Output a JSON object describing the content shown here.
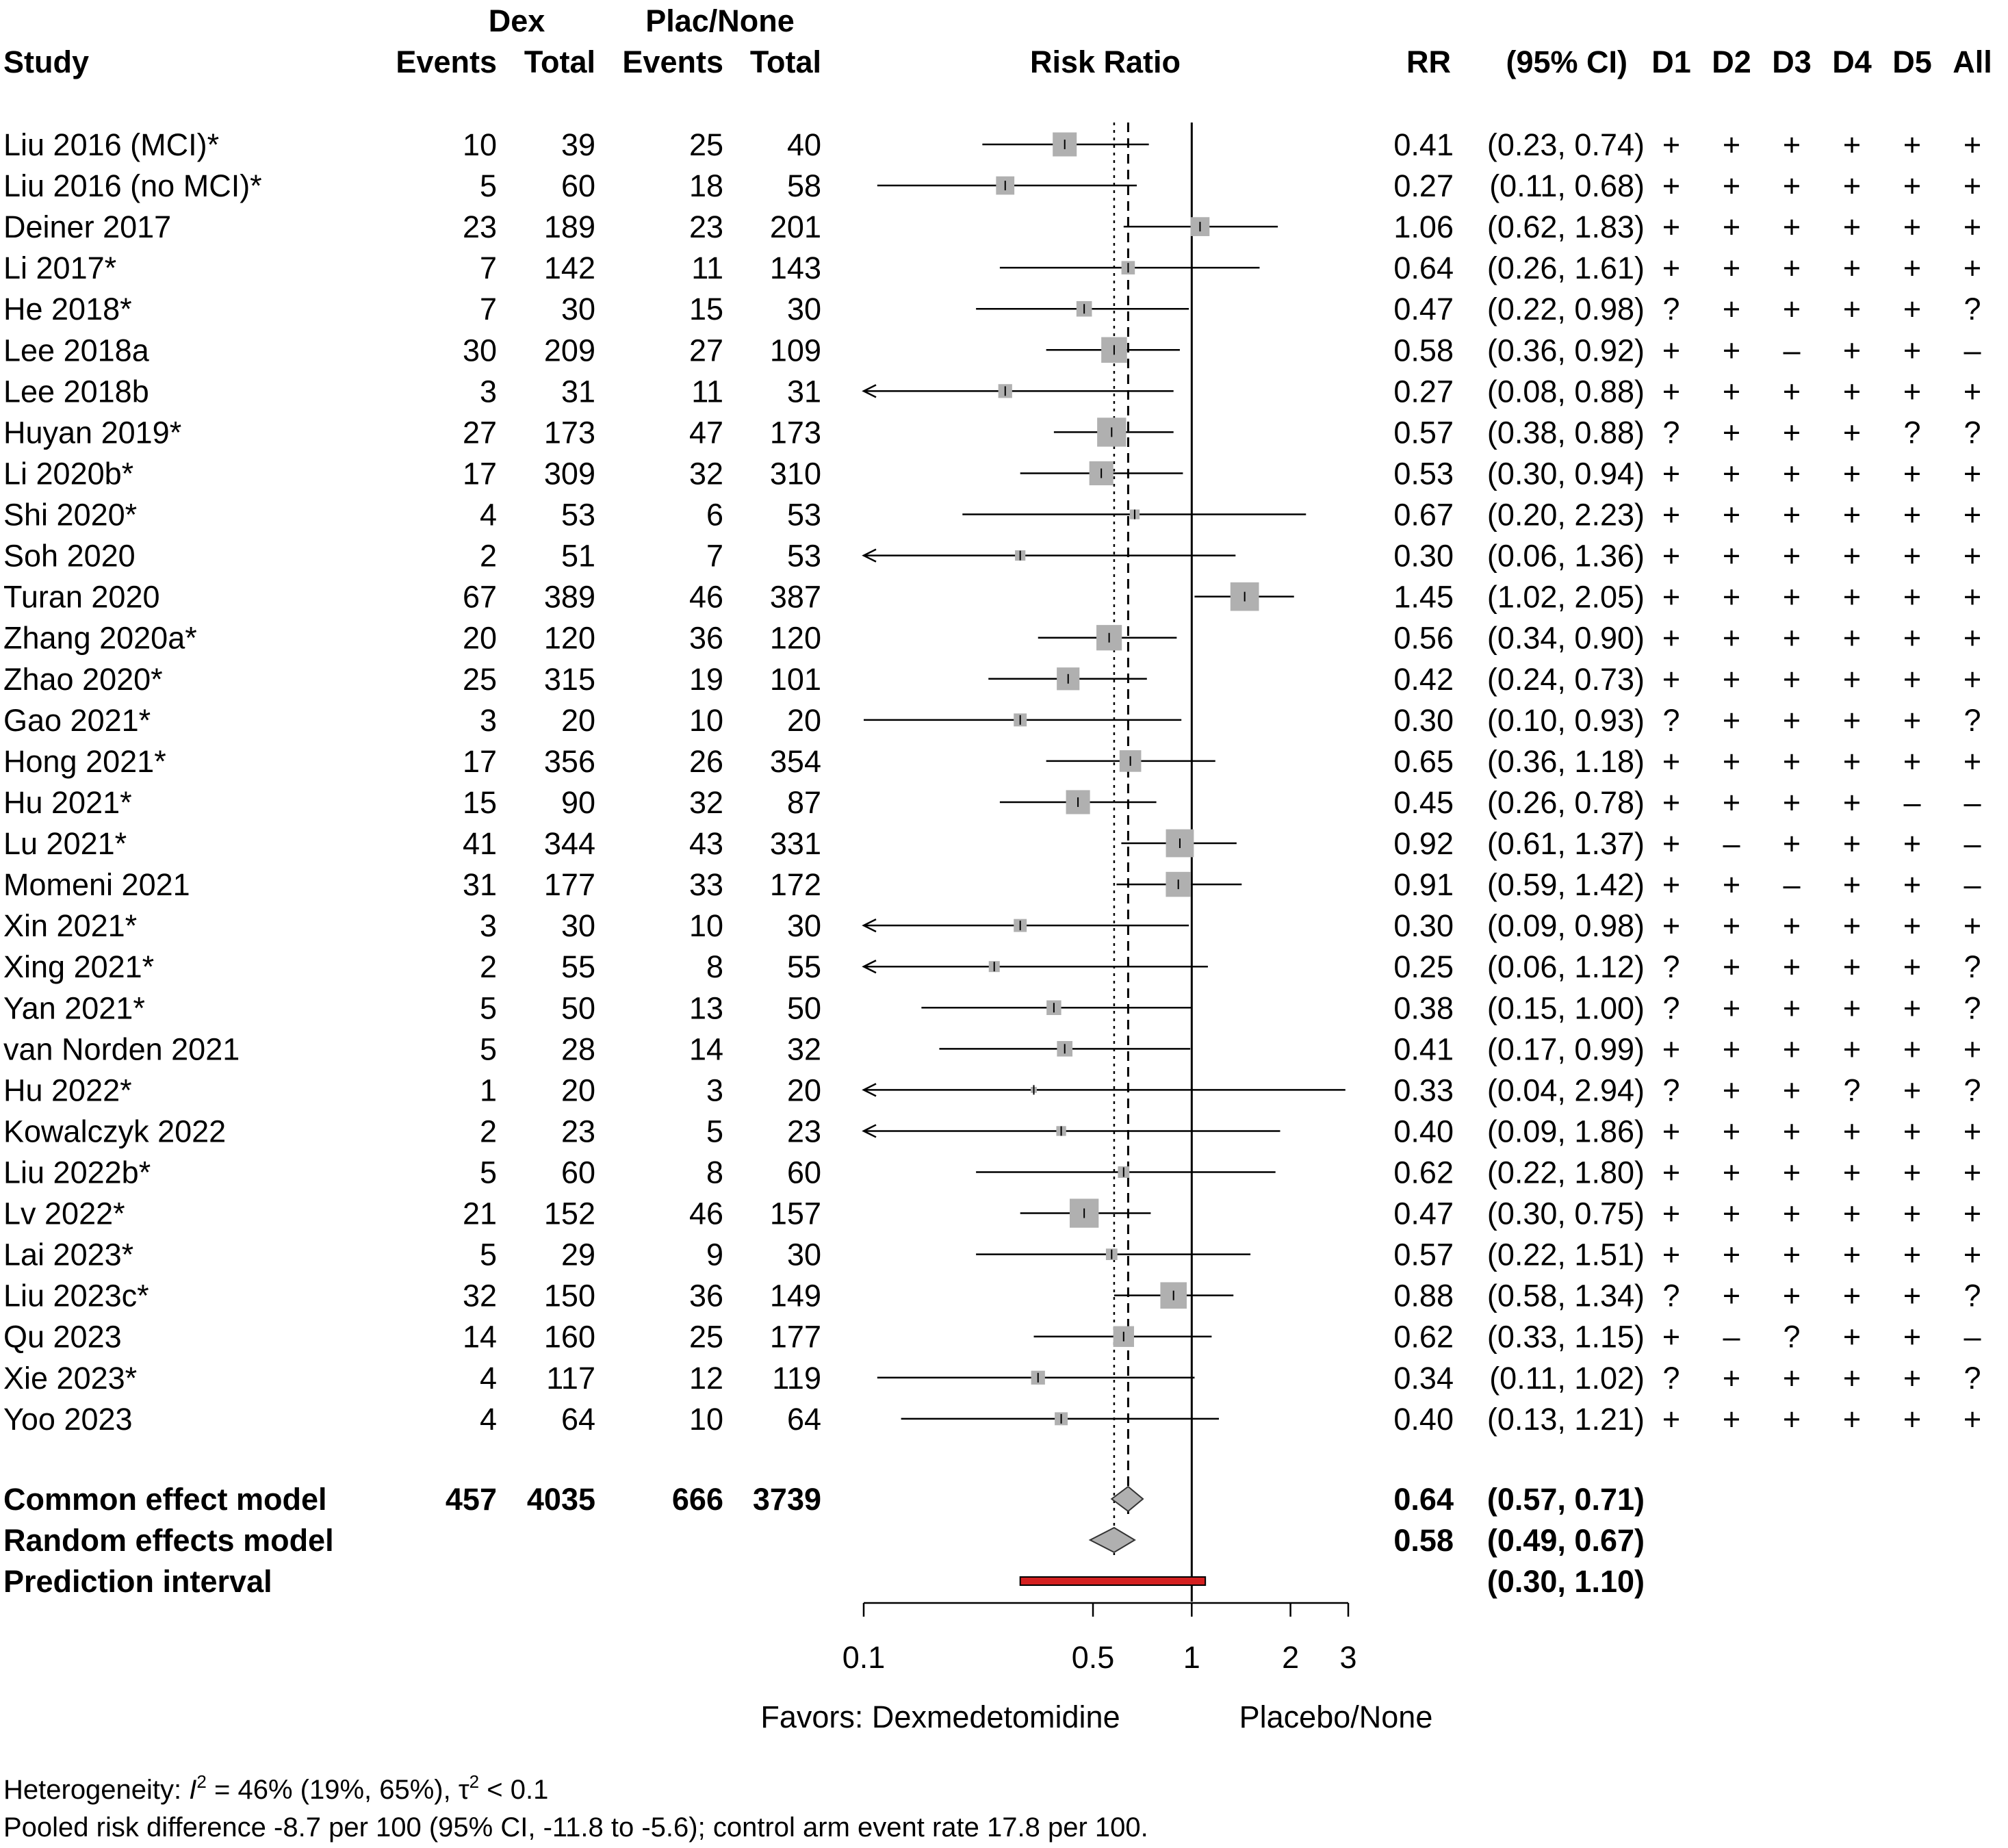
{
  "header": {
    "study": "Study",
    "group1": "Dex",
    "group2": "Plac/None",
    "events": "Events",
    "total": "Total",
    "plot_title": "Risk Ratio",
    "rr": "RR",
    "ci": "(95% CI)",
    "domains": [
      "D1",
      "D2",
      "D3",
      "D4",
      "D5",
      "All"
    ]
  },
  "rows": [
    {
      "study": "Liu 2016 (MCI)*",
      "e1": "10",
      "n1": "39",
      "e2": "25",
      "n2": "40",
      "rr": "0.41",
      "ci": "(0.23, 0.74)",
      "rob": [
        "+",
        "+",
        "+",
        "+",
        "+",
        "+"
      ]
    },
    {
      "study": "Liu 2016 (no MCI)*",
      "e1": "5",
      "n1": "60",
      "e2": "18",
      "n2": "58",
      "rr": "0.27",
      "ci": "(0.11, 0.68)",
      "rob": [
        "+",
        "+",
        "+",
        "+",
        "+",
        "+"
      ]
    },
    {
      "study": "Deiner 2017",
      "e1": "23",
      "n1": "189",
      "e2": "23",
      "n2": "201",
      "rr": "1.06",
      "ci": "(0.62, 1.83)",
      "rob": [
        "+",
        "+",
        "+",
        "+",
        "+",
        "+"
      ]
    },
    {
      "study": "Li 2017*",
      "e1": "7",
      "n1": "142",
      "e2": "11",
      "n2": "143",
      "rr": "0.64",
      "ci": "(0.26, 1.61)",
      "rob": [
        "+",
        "+",
        "+",
        "+",
        "+",
        "+"
      ]
    },
    {
      "study": "He 2018*",
      "e1": "7",
      "n1": "30",
      "e2": "15",
      "n2": "30",
      "rr": "0.47",
      "ci": "(0.22, 0.98)",
      "rob": [
        "?",
        "+",
        "+",
        "+",
        "+",
        "?"
      ]
    },
    {
      "study": "Lee 2018a",
      "e1": "30",
      "n1": "209",
      "e2": "27",
      "n2": "109",
      "rr": "0.58",
      "ci": "(0.36, 0.92)",
      "rob": [
        "+",
        "+",
        "–",
        "+",
        "+",
        "–"
      ]
    },
    {
      "study": "Lee 2018b",
      "e1": "3",
      "n1": "31",
      "e2": "11",
      "n2": "31",
      "rr": "0.27",
      "ci": "(0.08, 0.88)",
      "rob": [
        "+",
        "+",
        "+",
        "+",
        "+",
        "+"
      ]
    },
    {
      "study": "Huyan 2019*",
      "e1": "27",
      "n1": "173",
      "e2": "47",
      "n2": "173",
      "rr": "0.57",
      "ci": "(0.38, 0.88)",
      "rob": [
        "?",
        "+",
        "+",
        "+",
        "?",
        "?"
      ]
    },
    {
      "study": "Li 2020b*",
      "e1": "17",
      "n1": "309",
      "e2": "32",
      "n2": "310",
      "rr": "0.53",
      "ci": "(0.30, 0.94)",
      "rob": [
        "+",
        "+",
        "+",
        "+",
        "+",
        "+"
      ]
    },
    {
      "study": "Shi 2020*",
      "e1": "4",
      "n1": "53",
      "e2": "6",
      "n2": "53",
      "rr": "0.67",
      "ci": "(0.20, 2.23)",
      "rob": [
        "+",
        "+",
        "+",
        "+",
        "+",
        "+"
      ]
    },
    {
      "study": "Soh 2020",
      "e1": "2",
      "n1": "51",
      "e2": "7",
      "n2": "53",
      "rr": "0.30",
      "ci": "(0.06, 1.36)",
      "rob": [
        "+",
        "+",
        "+",
        "+",
        "+",
        "+"
      ]
    },
    {
      "study": "Turan 2020",
      "e1": "67",
      "n1": "389",
      "e2": "46",
      "n2": "387",
      "rr": "1.45",
      "ci": "(1.02, 2.05)",
      "rob": [
        "+",
        "+",
        "+",
        "+",
        "+",
        "+"
      ]
    },
    {
      "study": "Zhang 2020a*",
      "e1": "20",
      "n1": "120",
      "e2": "36",
      "n2": "120",
      "rr": "0.56",
      "ci": "(0.34, 0.90)",
      "rob": [
        "+",
        "+",
        "+",
        "+",
        "+",
        "+"
      ]
    },
    {
      "study": "Zhao 2020*",
      "e1": "25",
      "n1": "315",
      "e2": "19",
      "n2": "101",
      "rr": "0.42",
      "ci": "(0.24, 0.73)",
      "rob": [
        "+",
        "+",
        "+",
        "+",
        "+",
        "+"
      ]
    },
    {
      "study": "Gao 2021*",
      "e1": "3",
      "n1": "20",
      "e2": "10",
      "n2": "20",
      "rr": "0.30",
      "ci": "(0.10, 0.93)",
      "rob": [
        "?",
        "+",
        "+",
        "+",
        "+",
        "?"
      ]
    },
    {
      "study": "Hong 2021*",
      "e1": "17",
      "n1": "356",
      "e2": "26",
      "n2": "354",
      "rr": "0.65",
      "ci": "(0.36, 1.18)",
      "rob": [
        "+",
        "+",
        "+",
        "+",
        "+",
        "+"
      ]
    },
    {
      "study": "Hu 2021*",
      "e1": "15",
      "n1": "90",
      "e2": "32",
      "n2": "87",
      "rr": "0.45",
      "ci": "(0.26, 0.78)",
      "rob": [
        "+",
        "+",
        "+",
        "+",
        "–",
        "–"
      ]
    },
    {
      "study": "Lu 2021*",
      "e1": "41",
      "n1": "344",
      "e2": "43",
      "n2": "331",
      "rr": "0.92",
      "ci": "(0.61, 1.37)",
      "rob": [
        "+",
        "–",
        "+",
        "+",
        "+",
        "–"
      ]
    },
    {
      "study": "Momeni 2021",
      "e1": "31",
      "n1": "177",
      "e2": "33",
      "n2": "172",
      "rr": "0.91",
      "ci": "(0.59, 1.42)",
      "rob": [
        "+",
        "+",
        "–",
        "+",
        "+",
        "–"
      ]
    },
    {
      "study": "Xin 2021*",
      "e1": "3",
      "n1": "30",
      "e2": "10",
      "n2": "30",
      "rr": "0.30",
      "ci": "(0.09, 0.98)",
      "rob": [
        "+",
        "+",
        "+",
        "+",
        "+",
        "+"
      ]
    },
    {
      "study": "Xing 2021*",
      "e1": "2",
      "n1": "55",
      "e2": "8",
      "n2": "55",
      "rr": "0.25",
      "ci": "(0.06, 1.12)",
      "rob": [
        "?",
        "+",
        "+",
        "+",
        "+",
        "?"
      ]
    },
    {
      "study": "Yan 2021*",
      "e1": "5",
      "n1": "50",
      "e2": "13",
      "n2": "50",
      "rr": "0.38",
      "ci": "(0.15, 1.00)",
      "rob": [
        "?",
        "+",
        "+",
        "+",
        "+",
        "?"
      ]
    },
    {
      "study": "van Norden 2021",
      "e1": "5",
      "n1": "28",
      "e2": "14",
      "n2": "32",
      "rr": "0.41",
      "ci": "(0.17, 0.99)",
      "rob": [
        "+",
        "+",
        "+",
        "+",
        "+",
        "+"
      ]
    },
    {
      "study": "Hu 2022*",
      "e1": "1",
      "n1": "20",
      "e2": "3",
      "n2": "20",
      "rr": "0.33",
      "ci": "(0.04, 2.94)",
      "rob": [
        "?",
        "+",
        "+",
        "?",
        "+",
        "?"
      ]
    },
    {
      "study": "Kowalczyk 2022",
      "e1": "2",
      "n1": "23",
      "e2": "5",
      "n2": "23",
      "rr": "0.40",
      "ci": "(0.09, 1.86)",
      "rob": [
        "+",
        "+",
        "+",
        "+",
        "+",
        "+"
      ]
    },
    {
      "study": "Liu 2022b*",
      "e1": "5",
      "n1": "60",
      "e2": "8",
      "n2": "60",
      "rr": "0.62",
      "ci": "(0.22, 1.80)",
      "rob": [
        "+",
        "+",
        "+",
        "+",
        "+",
        "+"
      ]
    },
    {
      "study": "Lv 2022*",
      "e1": "21",
      "n1": "152",
      "e2": "46",
      "n2": "157",
      "rr": "0.47",
      "ci": "(0.30, 0.75)",
      "rob": [
        "+",
        "+",
        "+",
        "+",
        "+",
        "+"
      ]
    },
    {
      "study": "Lai 2023*",
      "e1": "5",
      "n1": "29",
      "e2": "9",
      "n2": "30",
      "rr": "0.57",
      "ci": "(0.22, 1.51)",
      "rob": [
        "+",
        "+",
        "+",
        "+",
        "+",
        "+"
      ]
    },
    {
      "study": "Liu 2023c*",
      "e1": "32",
      "n1": "150",
      "e2": "36",
      "n2": "149",
      "rr": "0.88",
      "ci": "(0.58, 1.34)",
      "rob": [
        "?",
        "+",
        "+",
        "+",
        "+",
        "?"
      ]
    },
    {
      "study": "Qu 2023",
      "e1": "14",
      "n1": "160",
      "e2": "25",
      "n2": "177",
      "rr": "0.62",
      "ci": "(0.33, 1.15)",
      "rob": [
        "+",
        "–",
        "?",
        "+",
        "+",
        "–"
      ]
    },
    {
      "study": "Xie 2023*",
      "e1": "4",
      "n1": "117",
      "e2": "12",
      "n2": "119",
      "rr": "0.34",
      "ci": "(0.11, 1.02)",
      "rob": [
        "?",
        "+",
        "+",
        "+",
        "+",
        "?"
      ]
    },
    {
      "study": "Yoo 2023",
      "e1": "4",
      "n1": "64",
      "e2": "10",
      "n2": "64",
      "rr": "0.40",
      "ci": "(0.13, 1.21)",
      "rob": [
        "+",
        "+",
        "+",
        "+",
        "+",
        "+"
      ]
    }
  ],
  "summary": {
    "common": {
      "label": "Common effect model",
      "e1": "457",
      "n1": "4035",
      "e2": "666",
      "n2": "3739",
      "rr": "0.64",
      "ci": "(0.57, 0.71)"
    },
    "random": {
      "label": "Random effects model",
      "rr": "0.58",
      "ci": "(0.49, 0.67)"
    },
    "prediction": {
      "label": "Prediction interval",
      "ci": "(0.30, 1.10)"
    }
  },
  "axis": {
    "ticks": [
      "0.1",
      "0.5",
      "1",
      "2",
      "3"
    ],
    "favors_left": "Favors: Dexmedetomidine",
    "favors_right": "Placebo/None"
  },
  "footnotes": {
    "heterogeneity_prefix": "Heterogeneity: ",
    "i_symbol": "I",
    "superscript": "2",
    "heterogeneity_mid": " = 46% (19%, 65%), ",
    "tau_symbol": "τ",
    "heterogeneity_end": " < 0.1",
    "pooled": "Pooled risk difference -8.7 per 100 (95% CI, -11.8 to -5.6); control arm event rate 17.8 per 100."
  },
  "chart_data": {
    "type": "forest",
    "xscale": "log",
    "xlim": [
      0.1,
      3
    ],
    "xticks": [
      0.1,
      0.5,
      1,
      2,
      3
    ],
    "null_line": 1,
    "common_line": 0.64,
    "random_line": 0.58,
    "colors": {
      "square": "#b0b0b0",
      "diamond": "#b0b0b0",
      "prediction": "#d42020"
    },
    "studies": [
      {
        "study": "Liu 2016 (MCI)*",
        "rr": 0.41,
        "lo": 0.23,
        "hi": 0.74,
        "weight": 4.8
      },
      {
        "study": "Liu 2016 (no MCI)*",
        "rr": 0.27,
        "lo": 0.11,
        "hi": 0.68,
        "weight": 2.8
      },
      {
        "study": "Deiner 2017",
        "rr": 1.06,
        "lo": 0.62,
        "hi": 1.83,
        "weight": 3.0
      },
      {
        "study": "Li 2017*",
        "rr": 0.64,
        "lo": 0.26,
        "hi": 1.61,
        "weight": 1.5
      },
      {
        "study": "He 2018*",
        "rr": 0.47,
        "lo": 0.22,
        "hi": 0.98,
        "weight": 2.0
      },
      {
        "study": "Lee 2018a",
        "rr": 0.58,
        "lo": 0.36,
        "hi": 0.92,
        "weight": 5.5
      },
      {
        "study": "Lee 2018b",
        "rr": 0.27,
        "lo": 0.08,
        "hi": 0.88,
        "weight": 1.6
      },
      {
        "study": "Huyan 2019*",
        "rr": 0.57,
        "lo": 0.38,
        "hi": 0.88,
        "weight": 7.0
      },
      {
        "study": "Li 2020b*",
        "rr": 0.53,
        "lo": 0.3,
        "hi": 0.94,
        "weight": 4.8
      },
      {
        "study": "Shi 2020*",
        "rr": 0.67,
        "lo": 0.2,
        "hi": 2.23,
        "weight": 0.8
      },
      {
        "study": "Soh 2020",
        "rr": 0.3,
        "lo": 0.06,
        "hi": 1.36,
        "weight": 0.9
      },
      {
        "study": "Turan 2020",
        "rr": 1.45,
        "lo": 1.02,
        "hi": 2.05,
        "weight": 6.8
      },
      {
        "study": "Zhang 2020a*",
        "rr": 0.56,
        "lo": 0.34,
        "hi": 0.9,
        "weight": 5.4
      },
      {
        "study": "Zhao 2020*",
        "rr": 0.42,
        "lo": 0.24,
        "hi": 0.73,
        "weight": 4.3
      },
      {
        "study": "Gao 2021*",
        "rr": 0.3,
        "lo": 0.1,
        "hi": 0.93,
        "weight": 1.4
      },
      {
        "study": "Hong 2021*",
        "rr": 0.65,
        "lo": 0.36,
        "hi": 1.18,
        "weight": 3.9
      },
      {
        "study": "Hu 2021*",
        "rr": 0.45,
        "lo": 0.26,
        "hi": 0.78,
        "weight": 4.8
      },
      {
        "study": "Lu 2021*",
        "rr": 0.92,
        "lo": 0.61,
        "hi": 1.37,
        "weight": 6.5
      },
      {
        "study": "Momeni 2021",
        "rr": 0.91,
        "lo": 0.59,
        "hi": 1.42,
        "weight": 5.2
      },
      {
        "study": "Xin 2021*",
        "rr": 0.3,
        "lo": 0.09,
        "hi": 0.98,
        "weight": 1.4
      },
      {
        "study": "Xing 2021*",
        "rr": 0.25,
        "lo": 0.06,
        "hi": 1.12,
        "weight": 1.0
      },
      {
        "study": "Yan 2021*",
        "rr": 0.38,
        "lo": 0.15,
        "hi": 1.0,
        "weight": 1.8
      },
      {
        "study": "van Norden 2021",
        "rr": 0.41,
        "lo": 0.17,
        "hi": 0.99,
        "weight": 2.0
      },
      {
        "study": "Hu 2022*",
        "rr": 0.33,
        "lo": 0.04,
        "hi": 2.94,
        "weight": 0.3
      },
      {
        "study": "Kowalczyk 2022",
        "rr": 0.4,
        "lo": 0.09,
        "hi": 1.86,
        "weight": 0.8
      },
      {
        "study": "Liu 2022b*",
        "rr": 0.62,
        "lo": 0.22,
        "hi": 1.8,
        "weight": 1.1
      },
      {
        "study": "Lv 2022*",
        "rr": 0.47,
        "lo": 0.3,
        "hi": 0.75,
        "weight": 7.0
      },
      {
        "study": "Lai 2023*",
        "rr": 0.57,
        "lo": 0.22,
        "hi": 1.51,
        "weight": 1.1
      },
      {
        "study": "Liu 2023c*",
        "rr": 0.88,
        "lo": 0.58,
        "hi": 1.34,
        "weight": 5.8
      },
      {
        "study": "Qu 2023",
        "rr": 0.62,
        "lo": 0.33,
        "hi": 1.15,
        "weight": 3.6
      },
      {
        "study": "Xie 2023*",
        "rr": 0.34,
        "lo": 0.11,
        "hi": 1.02,
        "weight": 1.6
      },
      {
        "study": "Yoo 2023",
        "rr": 0.4,
        "lo": 0.13,
        "hi": 1.21,
        "weight": 1.4
      }
    ],
    "common": {
      "rr": 0.64,
      "lo": 0.57,
      "hi": 0.71
    },
    "random": {
      "rr": 0.58,
      "lo": 0.49,
      "hi": 0.67
    },
    "prediction": {
      "lo": 0.3,
      "hi": 1.1
    }
  }
}
